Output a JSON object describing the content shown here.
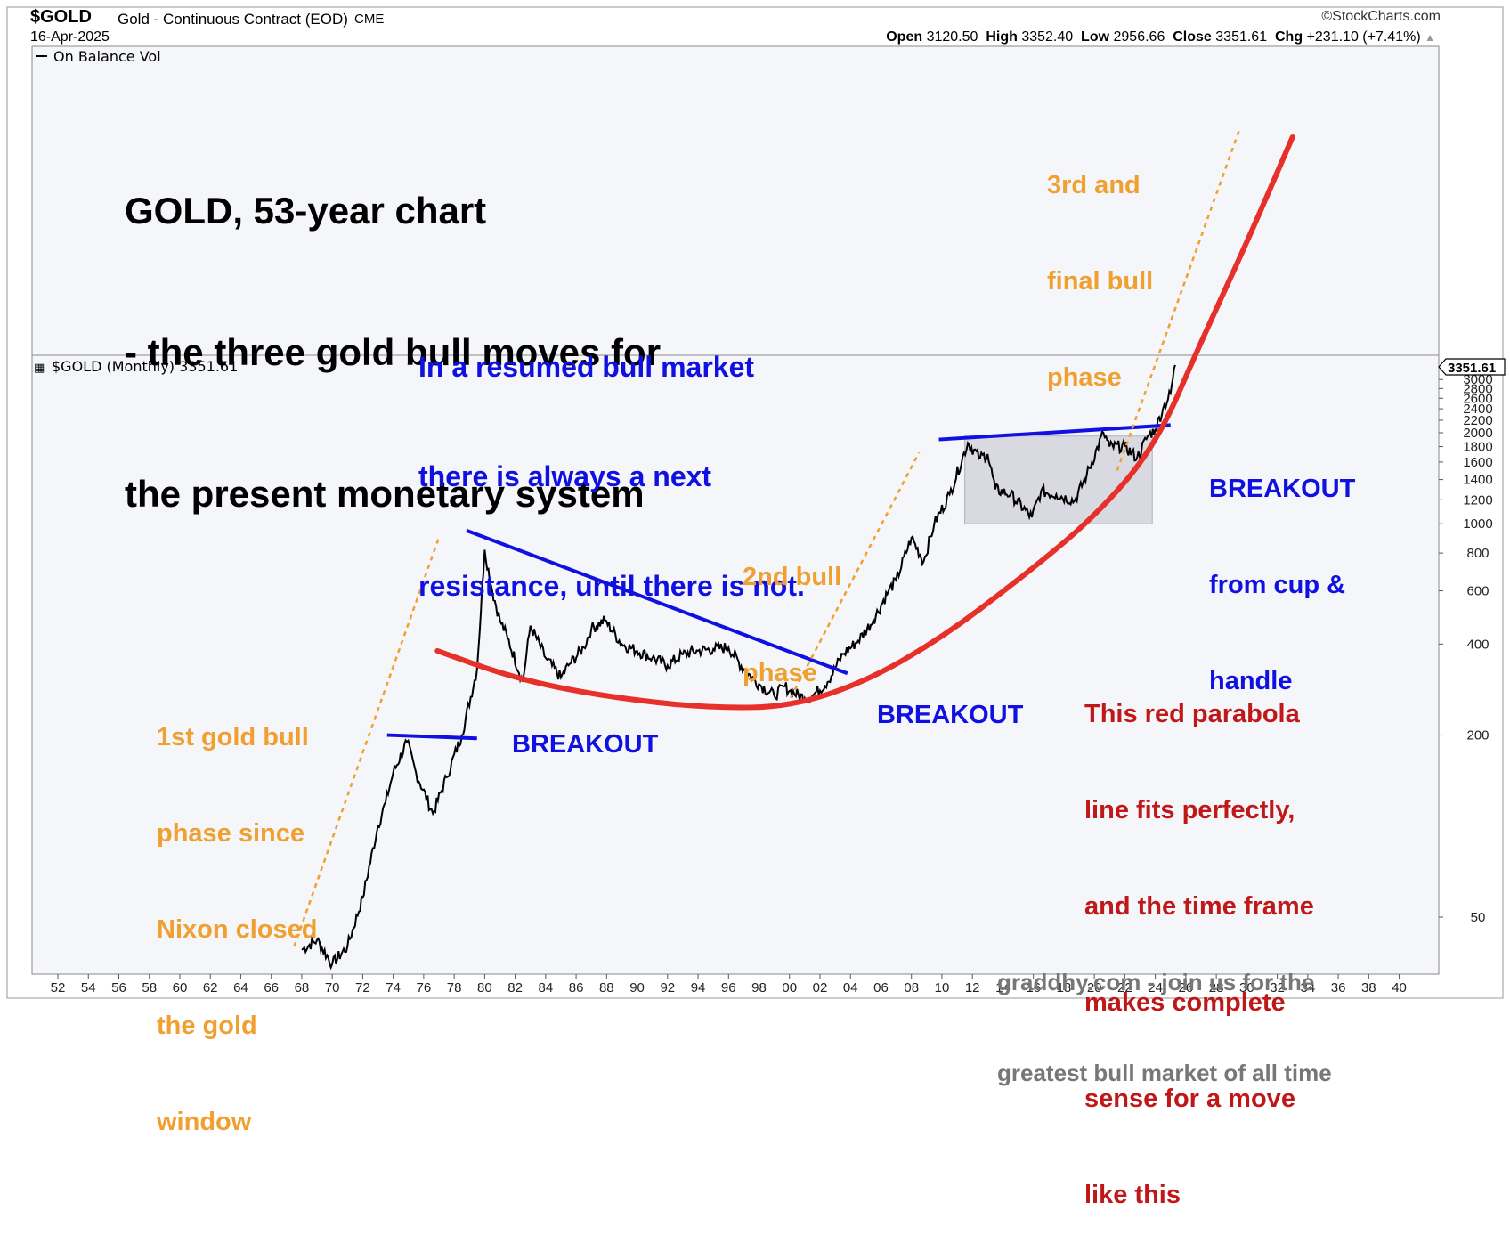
{
  "header": {
    "symbol": "$GOLD",
    "name": "Gold - Continuous Contract (EOD)",
    "exchange": "CME",
    "date": "16-Apr-2025",
    "copyright": "©StockCharts.com",
    "open_label": "Open",
    "open": "3120.50",
    "high_label": "High",
    "high": "3352.40",
    "low_label": "Low",
    "low": "2956.66",
    "close_label": "Close",
    "close": "3351.61",
    "chg_label": "Chg",
    "chg": "+231.10 (+7.41%)",
    "chg_icon": "up-triangle-icon"
  },
  "indicator_panel": {
    "label": "On Balance Vol"
  },
  "price_panel": {
    "label": "$GOLD (Monthly) 3351.61",
    "last_price_tag": "3351.61"
  },
  "annotations": {
    "title": [
      "GOLD, 53-year chart",
      "- the three gold bull moves for",
      "the present monetary system"
    ],
    "resumed": [
      "In a resumed bull market",
      "there is always a next",
      "resistance, until there is not."
    ],
    "third_bull": [
      "3rd and",
      "final bull",
      "phase"
    ],
    "second_bull": [
      "2nd bull",
      "phase"
    ],
    "first_bull": [
      "1st gold bull",
      "phase since",
      "Nixon closed",
      "the gold",
      "window"
    ],
    "breakout1": "BREAKOUT",
    "breakout2": "BREAKOUT",
    "breakout3": [
      "BREAKOUT",
      "from cup &",
      "handle"
    ],
    "parabola": [
      "This red parabola",
      "line fits perfectly,",
      "and the time frame",
      "makes complete",
      "sense for a move",
      "like this"
    ],
    "credit": [
      "graddhy.com - join us for the",
      "greatest bull market of all time"
    ]
  },
  "colors": {
    "orange": "#f0a030",
    "blue": "#1010e0",
    "red": "#e8302a",
    "darkred": "#c01818",
    "grey": "#777777",
    "price": "#000000"
  },
  "chart_data": {
    "type": "line",
    "scale": "log",
    "x_ticks": [
      "52",
      "54",
      "56",
      "58",
      "60",
      "62",
      "64",
      "66",
      "68",
      "70",
      "72",
      "74",
      "76",
      "78",
      "80",
      "82",
      "84",
      "86",
      "88",
      "90",
      "92",
      "94",
      "96",
      "98",
      "00",
      "02",
      "04",
      "06",
      "08",
      "10",
      "12",
      "14",
      "16",
      "18",
      "20",
      "22",
      "24",
      "26",
      "28",
      "30",
      "32",
      "34",
      "36",
      "38",
      "40"
    ],
    "y_ticks": [
      50,
      200,
      400,
      600,
      800,
      1000,
      1200,
      1400,
      1600,
      1800,
      2000,
      2200,
      2400,
      2600,
      2800,
      3000
    ],
    "series": [
      {
        "name": "$GOLD (Monthly)",
        "x": [
          1968.0,
          1969.0,
          1970.0,
          1971.0,
          1972.0,
          1973.0,
          1973.5,
          1974.0,
          1974.9,
          1975.5,
          1976.6,
          1977.5,
          1978.5,
          1979.5,
          1980.0,
          1980.5,
          1981.0,
          1981.5,
          1982.5,
          1983.0,
          1984.0,
          1985.0,
          1985.5,
          1986.5,
          1987.0,
          1987.9,
          1989.0,
          1990.0,
          1991.0,
          1992.0,
          1993.0,
          1994.0,
          1995.0,
          1996.0,
          1997.0,
          1998.0,
          1999.0,
          1999.7,
          2000.0,
          2001.0,
          2001.5,
          2002.5,
          2003.5,
          2004.5,
          2005.5,
          2006.5,
          2007.0,
          2008.0,
          2008.8,
          2009.5,
          2010.5,
          2011.7,
          2012.5,
          2013.0,
          2013.5,
          2014.5,
          2015.9,
          2016.5,
          2017.5,
          2018.7,
          2019.5,
          2020.6,
          2021.0,
          2022.0,
          2022.8,
          2023.5,
          2024.0,
          2024.5,
          2025.0,
          2025.3
        ],
        "values": [
          39,
          42,
          35,
          40,
          58,
          100,
          120,
          150,
          190,
          150,
          110,
          145,
          200,
          330,
          820,
          600,
          480,
          420,
          300,
          460,
          360,
          310,
          340,
          390,
          450,
          480,
          400,
          380,
          360,
          340,
          370,
          380,
          385,
          390,
          330,
          295,
          270,
          290,
          280,
          265,
          270,
          300,
          370,
          410,
          480,
          600,
          650,
          900,
          750,
          1000,
          1250,
          1850,
          1650,
          1700,
          1300,
          1250,
          1050,
          1280,
          1250,
          1190,
          1450,
          2000,
          1800,
          1800,
          1650,
          1950,
          2050,
          2400,
          2700,
          3351.61
        ]
      }
    ],
    "overlays": [
      {
        "name": "breakout1-line",
        "color": "blue",
        "points": [
          [
            1973.6,
            200
          ],
          [
            1979.5,
            195
          ]
        ]
      },
      {
        "name": "downtrend-line",
        "color": "blue",
        "points": [
          [
            1978.8,
            950
          ],
          [
            2003.8,
            320
          ]
        ]
      },
      {
        "name": "cup-handle-resistance",
        "color": "blue",
        "points": [
          [
            2009.8,
            1900
          ],
          [
            2025.0,
            2120
          ]
        ]
      },
      {
        "name": "phase1-trend",
        "color": "orange",
        "dashed": true,
        "points": [
          [
            1967.5,
            40
          ],
          [
            1977.0,
            900
          ]
        ]
      },
      {
        "name": "phase2-trend",
        "color": "orange",
        "dashed": true,
        "points": [
          [
            1999.8,
            250
          ],
          [
            2008.5,
            1720
          ]
        ]
      },
      {
        "name": "phase3-trend",
        "color": "orange",
        "dashed": true,
        "points": [
          [
            2021.5,
            1500
          ],
          [
            2029.5,
            20000
          ]
        ]
      }
    ],
    "parabola": {
      "color": "red",
      "points": [
        [
          1976.9,
          380
        ],
        [
          1981,
          320
        ],
        [
          1985,
          285
        ],
        [
          1990,
          260
        ],
        [
          1995,
          246
        ],
        [
          2000,
          248
        ],
        [
          2005,
          300
        ],
        [
          2010,
          420
        ],
        [
          2015,
          650
        ],
        [
          2020,
          1050
        ],
        [
          2024,
          1800
        ],
        [
          2027,
          4000
        ],
        [
          2030,
          8500
        ],
        [
          2033,
          19000
        ]
      ]
    },
    "highlight_box": {
      "x_range": [
        2011.5,
        2023.8
      ],
      "y_range": [
        1000,
        1950
      ]
    }
  }
}
